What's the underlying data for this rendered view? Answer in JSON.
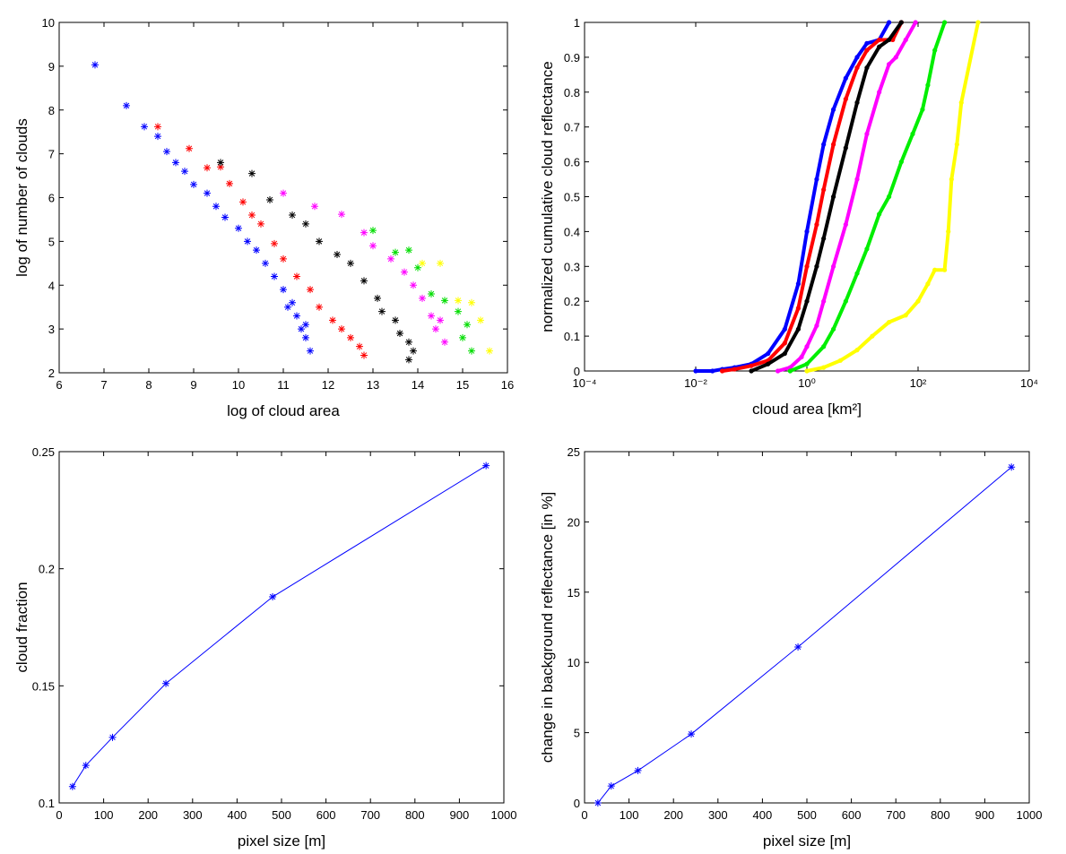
{
  "chart_data": [
    {
      "type": "scatter",
      "marker": "asterisk",
      "xlabel": "log of cloud area",
      "ylabel": "log of number of clouds",
      "xlim": [
        6,
        16
      ],
      "xticks": [
        6,
        7,
        8,
        9,
        10,
        11,
        12,
        13,
        14,
        15,
        16
      ],
      "ylim": [
        2,
        10
      ],
      "yticks": [
        2,
        3,
        4,
        5,
        6,
        7,
        8,
        9,
        10
      ],
      "series": [
        {
          "color": "#0000ff",
          "x": [
            6.8,
            7.5,
            7.9,
            8.2,
            8.4,
            8.6,
            8.8,
            9.0,
            9.3,
            9.5,
            9.7,
            10.0,
            10.2,
            10.4,
            10.6,
            10.8,
            11.0,
            11.2,
            11.3,
            11.4,
            11.5,
            11.6,
            11.1,
            11.5
          ],
          "values": [
            9.03,
            8.1,
            7.62,
            7.4,
            7.05,
            6.8,
            6.6,
            6.3,
            6.1,
            5.8,
            5.55,
            5.3,
            5.0,
            4.8,
            4.5,
            4.2,
            3.9,
            3.6,
            3.3,
            3.0,
            2.8,
            2.5,
            3.5,
            3.1
          ]
        },
        {
          "color": "#ff0000",
          "x": [
            8.2,
            8.9,
            9.3,
            9.6,
            9.8,
            10.1,
            10.3,
            10.5,
            10.8,
            11.0,
            11.3,
            11.6,
            11.8,
            12.1,
            12.3,
            12.5,
            12.7,
            12.8
          ],
          "values": [
            7.62,
            7.12,
            6.68,
            6.7,
            6.32,
            5.9,
            5.6,
            5.4,
            4.95,
            4.6,
            4.2,
            3.9,
            3.5,
            3.2,
            3.0,
            2.8,
            2.6,
            2.4
          ]
        },
        {
          "color": "#000000",
          "x": [
            9.6,
            10.3,
            10.7,
            11.2,
            11.5,
            11.8,
            12.2,
            12.5,
            12.8,
            13.1,
            13.2,
            13.5,
            13.6,
            13.8,
            13.9,
            13.8
          ],
          "values": [
            6.8,
            6.55,
            5.95,
            5.6,
            5.4,
            5.0,
            4.7,
            4.5,
            4.1,
            3.7,
            3.4,
            3.2,
            2.9,
            2.7,
            2.5,
            2.3
          ]
        },
        {
          "color": "#ff00ff",
          "x": [
            11.0,
            11.7,
            12.3,
            12.8,
            13.0,
            13.4,
            13.7,
            13.9,
            14.1,
            14.3,
            14.4,
            14.6,
            14.5
          ],
          "values": [
            6.1,
            5.8,
            5.62,
            5.2,
            4.9,
            4.6,
            4.3,
            4.0,
            3.7,
            3.3,
            3.0,
            2.7,
            3.2
          ]
        },
        {
          "color": "#00dd00",
          "x": [
            13.0,
            13.5,
            13.8,
            14.0,
            14.3,
            14.6,
            14.9,
            15.1,
            15.0,
            15.2
          ],
          "values": [
            5.25,
            4.75,
            4.8,
            4.4,
            3.8,
            3.65,
            3.4,
            3.1,
            2.8,
            2.5
          ]
        },
        {
          "color": "#ffff00",
          "x": [
            14.1,
            14.5,
            14.9,
            15.2,
            15.4,
            15.6
          ],
          "values": [
            4.5,
            4.5,
            3.65,
            3.6,
            3.2,
            2.5
          ]
        }
      ]
    },
    {
      "type": "scatter",
      "marker": "dot",
      "xscale": "log",
      "xlabel": "cloud area [km²]",
      "ylabel": "normalized cumulative cloud reflectance",
      "xlim": [
        0.0001,
        10000
      ],
      "xticks": [
        {
          "value": 0.0001,
          "label": "10⁻⁴"
        },
        {
          "value": 0.01,
          "label": "10⁻²"
        },
        {
          "value": 1,
          "label": "10⁰"
        },
        {
          "value": 100,
          "label": "10²"
        },
        {
          "value": 10000,
          "label": "10⁴"
        }
      ],
      "ylim": [
        0,
        1
      ],
      "yticks": [
        0,
        0.1,
        0.2,
        0.3,
        0.4,
        0.5,
        0.6,
        0.7,
        0.8,
        0.9,
        1
      ],
      "series": [
        {
          "color": "#0000ff",
          "x": [
            0.01,
            0.02,
            0.03,
            0.05,
            0.1,
            0.2,
            0.4,
            0.7,
            1,
            1.5,
            2,
            3,
            5,
            8,
            12,
            20,
            30
          ],
          "values": [
            0,
            0,
            0.005,
            0.01,
            0.02,
            0.05,
            0.12,
            0.25,
            0.4,
            0.55,
            0.65,
            0.75,
            0.84,
            0.9,
            0.94,
            0.95,
            1
          ]
        },
        {
          "color": "#ff0000",
          "x": [
            0.03,
            0.05,
            0.1,
            0.2,
            0.4,
            0.7,
            1,
            1.5,
            2,
            3,
            5,
            8,
            12,
            20,
            35,
            50
          ],
          "values": [
            0,
            0.005,
            0.015,
            0.03,
            0.08,
            0.18,
            0.3,
            0.42,
            0.52,
            0.65,
            0.78,
            0.87,
            0.92,
            0.95,
            0.95,
            1
          ]
        },
        {
          "color": "#000000",
          "x": [
            0.1,
            0.2,
            0.4,
            0.7,
            1,
            1.5,
            2,
            3,
            5,
            8,
            12,
            20,
            30,
            50
          ],
          "values": [
            0,
            0.02,
            0.05,
            0.12,
            0.2,
            0.3,
            0.38,
            0.5,
            0.64,
            0.77,
            0.87,
            0.93,
            0.95,
            1
          ]
        },
        {
          "color": "#ff00ff",
          "x": [
            0.3,
            0.5,
            0.8,
            1,
            1.5,
            2,
            3,
            5,
            8,
            12,
            20,
            30,
            40,
            60,
            90
          ],
          "values": [
            0,
            0.01,
            0.04,
            0.07,
            0.13,
            0.2,
            0.3,
            0.42,
            0.55,
            0.68,
            0.8,
            0.88,
            0.9,
            0.95,
            1
          ]
        },
        {
          "color": "#00ee00",
          "x": [
            0.5,
            1,
            2,
            3,
            5,
            8,
            12,
            20,
            30,
            50,
            80,
            120,
            150,
            200,
            300
          ],
          "values": [
            0,
            0.02,
            0.07,
            0.12,
            0.2,
            0.28,
            0.35,
            0.45,
            0.5,
            0.6,
            0.68,
            0.75,
            0.82,
            0.92,
            1
          ]
        },
        {
          "color": "#ffff00",
          "x": [
            1,
            2,
            4,
            8,
            15,
            30,
            60,
            100,
            150,
            200,
            300,
            350,
            400,
            500,
            600,
            1200
          ],
          "values": [
            0,
            0.01,
            0.03,
            0.06,
            0.1,
            0.14,
            0.16,
            0.2,
            0.25,
            0.29,
            0.29,
            0.4,
            0.55,
            0.65,
            0.77,
            1
          ]
        }
      ]
    },
    {
      "type": "line",
      "marker": "asterisk",
      "xlabel": "pixel size  [m]",
      "ylabel": "cloud fraction",
      "xlim": [
        0,
        1000
      ],
      "xticks": [
        0,
        100,
        200,
        300,
        400,
        500,
        600,
        700,
        800,
        900,
        1000
      ],
      "ylim": [
        0.1,
        0.25
      ],
      "yticks": [
        0.1,
        0.15,
        0.2,
        0.25
      ],
      "x": [
        30,
        60,
        120,
        240,
        480,
        960
      ],
      "series": [
        {
          "color": "#0000ff",
          "values": [
            0.107,
            0.116,
            0.128,
            0.151,
            0.188,
            0.244
          ]
        }
      ]
    },
    {
      "type": "line",
      "marker": "asterisk",
      "xlabel": "pixel size [m]",
      "ylabel": "change in background reflectance [in %]",
      "xlim": [
        0,
        1000
      ],
      "xticks": [
        0,
        100,
        200,
        300,
        400,
        500,
        600,
        700,
        800,
        900,
        1000
      ],
      "ylim": [
        0,
        25
      ],
      "yticks": [
        0,
        5,
        10,
        15,
        20,
        25
      ],
      "x": [
        30,
        60,
        120,
        240,
        480,
        960
      ],
      "series": [
        {
          "color": "#0000ff",
          "values": [
            0,
            1.2,
            2.3,
            4.9,
            11.1,
            23.9
          ]
        }
      ]
    }
  ]
}
